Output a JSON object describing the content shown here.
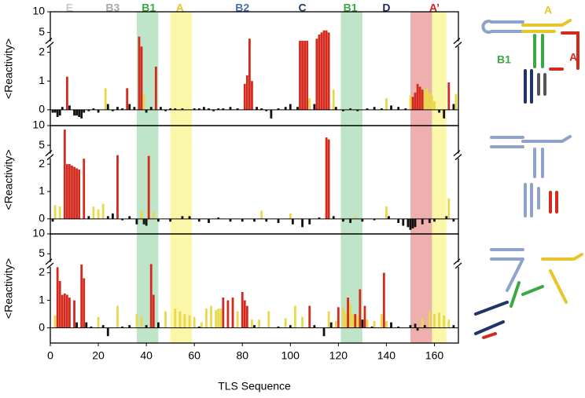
{
  "chart_data": [
    {
      "type": "bar",
      "ylabel": "<Reactivity>",
      "xlim": [
        0,
        170
      ],
      "ylim": [
        -0.55,
        10
      ],
      "ybreak": 2.3,
      "yticks": [
        0,
        1,
        2,
        5,
        10
      ],
      "region_labels": [
        {
          "text": "E",
          "x": 8,
          "color": "#c8c8c8"
        },
        {
          "text": "B3",
          "x": 26,
          "color": "#a8a8a8"
        },
        {
          "text": "B1",
          "x": 41,
          "color": "#3aa845"
        },
        {
          "text": "A",
          "x": 54,
          "color": "#e8c62a"
        },
        {
          "text": "B2",
          "x": 80,
          "color": "#4b6fae"
        },
        {
          "text": "C",
          "x": 105,
          "color": "#283a6a"
        },
        {
          "text": "B1",
          "x": 125,
          "color": "#3aa845"
        },
        {
          "text": "D",
          "x": 140,
          "color": "#1d2a55"
        },
        {
          "text": "A’",
          "x": 160,
          "color": "#d62020"
        }
      ],
      "highlights": [
        {
          "x": [
            36,
            45
          ],
          "color": "#bfe5c8"
        },
        {
          "x": [
            50,
            59
          ],
          "color": "#fbf7a8"
        },
        {
          "x": [
            121,
            130
          ],
          "color": "#bfe5c8"
        },
        {
          "x": [
            150,
            159
          ],
          "color": "#eeb0ae"
        },
        {
          "x": [
            159,
            165
          ],
          "color": "#fbf7a8"
        }
      ],
      "series": [
        {
          "color": "#d42a1e",
          "x": [
            7,
            32,
            37,
            38,
            44,
            81,
            82,
            83,
            84,
            104,
            105,
            106,
            107,
            111,
            112,
            113,
            114,
            115,
            116,
            151,
            152,
            153,
            154,
            155,
            166
          ],
          "values": [
            1.15,
            0.75,
            4,
            2.2,
            1.5,
            0.9,
            1.2,
            3.5,
            1.0,
            3,
            3,
            3,
            3,
            3.5,
            4.5,
            5,
            5.5,
            5.5,
            5,
            0.45,
            0.6,
            0.9,
            0.8,
            0.7,
            0.95
          ]
        },
        {
          "color": "#e8d84a",
          "x": [
            23,
            39,
            108,
            118,
            140,
            150,
            156,
            157,
            158,
            159,
            160,
            169
          ],
          "values": [
            0.75,
            0.55,
            0.4,
            0.7,
            0.4,
            0.5,
            0.7,
            0.75,
            0.6,
            0.5,
            0.3,
            0.55
          ]
        },
        {
          "color": "#111111",
          "x": [
            1,
            2,
            3,
            4,
            5,
            8,
            10,
            11,
            12,
            13,
            14,
            16,
            18,
            20,
            24,
            26,
            28,
            30,
            33,
            35,
            40,
            42,
            46,
            48,
            50,
            52,
            55,
            60,
            62,
            64,
            66,
            68,
            70,
            72,
            75,
            78,
            86,
            88,
            90,
            92,
            95,
            98,
            100,
            103,
            110,
            119,
            122,
            125,
            128,
            132,
            135,
            138,
            142,
            145,
            148,
            162,
            164,
            168
          ],
          "values": [
            -0.1,
            -0.1,
            -0.25,
            -0.2,
            0.1,
            0.15,
            -0.2,
            -0.2,
            -0.25,
            -0.3,
            -0.1,
            -0.05,
            0.05,
            -0.1,
            0.2,
            -0.05,
            0.1,
            0.05,
            0.2,
            0.1,
            -0.1,
            0.1,
            0.1,
            -0.05,
            0.05,
            0.05,
            0.05,
            0.05,
            0.05,
            0.1,
            0.05,
            -0.05,
            0.05,
            0.05,
            0.1,
            0.05,
            0.1,
            0.05,
            -0.05,
            -0.3,
            0.05,
            0.1,
            0.2,
            0.1,
            0.2,
            0.1,
            -0.05,
            0.05,
            -0.05,
            0.05,
            0.1,
            0.05,
            0.15,
            0.1,
            0.05,
            -0.1,
            -0.3,
            0.2
          ]
        }
      ]
    },
    {
      "type": "bar",
      "ylabel": "<Reactivity>",
      "xlim": [
        0,
        170
      ],
      "ylim": [
        -0.55,
        10
      ],
      "ybreak": 2.3,
      "yticks": [
        0,
        1,
        2,
        5,
        10
      ],
      "series": [
        {
          "color": "#d42a1e",
          "x": [
            6,
            7,
            8,
            9,
            10,
            11,
            12,
            14,
            28,
            41,
            115,
            116
          ],
          "values": [
            9,
            2,
            2,
            1.95,
            1.9,
            1.85,
            1.8,
            2.2,
            2.5,
            2.3,
            7,
            6.5
          ]
        },
        {
          "color": "#e8d84a",
          "x": [
            2,
            4,
            18,
            20,
            22,
            38,
            43,
            88,
            100,
            127,
            140,
            166
          ],
          "values": [
            0.5,
            0.45,
            0.45,
            0.35,
            0.55,
            0.3,
            0.25,
            0.3,
            0.2,
            0.1,
            0.45,
            0.75
          ]
        },
        {
          "color": "#111111",
          "x": [
            1,
            16,
            24,
            26,
            30,
            33,
            36,
            39,
            40,
            45,
            50,
            55,
            58,
            62,
            66,
            70,
            75,
            80,
            85,
            90,
            95,
            101,
            105,
            108,
            112,
            118,
            122,
            125,
            130,
            135,
            141,
            145,
            147,
            149,
            150,
            151,
            152,
            155,
            158,
            160,
            165,
            168
          ],
          "values": [
            -0.1,
            0.1,
            0.1,
            0.2,
            -0.05,
            0.1,
            -0.2,
            -0.2,
            -0.25,
            -0.1,
            -0.1,
            0.1,
            0.1,
            -0.1,
            -0.15,
            0.05,
            -0.1,
            -0.1,
            -0.1,
            -0.1,
            -0.15,
            -0.2,
            -0.3,
            -0.2,
            0.05,
            0.1,
            -0.1,
            -0.15,
            -0.1,
            -0.05,
            0.1,
            -0.15,
            -0.25,
            -0.3,
            -0.4,
            -0.35,
            -0.3,
            -0.2,
            -0.15,
            -0.1,
            0.1,
            -0.1
          ]
        }
      ]
    },
    {
      "type": "bar",
      "ylabel": "<Reactivity>",
      "xlabel": "TLS Sequence",
      "xlim": [
        0,
        170
      ],
      "ylim": [
        -0.55,
        10
      ],
      "ybreak": 2.3,
      "yticks": [
        0,
        1,
        2,
        5,
        10
      ],
      "xticks": [
        0,
        20,
        40,
        60,
        80,
        100,
        120,
        140,
        160
      ],
      "series": [
        {
          "color": "#d42a1e",
          "x": [
            3,
            4,
            5,
            6,
            7,
            8,
            10,
            13,
            14,
            42,
            43,
            72,
            74,
            76,
            80,
            81,
            82,
            108,
            120,
            124,
            127,
            129,
            131,
            139
          ],
          "values": [
            2.2,
            1.7,
            1.2,
            1.25,
            1.2,
            1.1,
            1.0,
            2.3,
            1.8,
            2.4,
            1.2,
            1.1,
            1.0,
            1.1,
            1.3,
            1.0,
            0.8,
            0.8,
            0.75,
            1.1,
            0.5,
            1.4,
            0.8,
            2.0
          ]
        },
        {
          "color": "#e8d84a",
          "x": [
            2,
            20,
            28,
            36,
            38,
            48,
            52,
            54,
            56,
            58,
            60,
            63,
            65,
            67,
            69,
            70,
            71,
            78,
            84,
            87,
            91,
            98,
            102,
            105,
            116,
            119,
            122,
            123,
            125,
            126,
            128,
            132,
            135,
            138,
            140,
            155,
            158,
            160,
            162,
            164,
            166
          ],
          "values": [
            0.45,
            0.4,
            0.8,
            0.5,
            0.4,
            0.6,
            0.7,
            0.6,
            0.5,
            0.45,
            0.4,
            0.2,
            0.7,
            0.8,
            0.65,
            0.7,
            0.7,
            0.6,
            0.3,
            0.3,
            0.6,
            0.35,
            0.8,
            0.4,
            0.6,
            0.25,
            0.75,
            0.55,
            0.9,
            0.5,
            0.45,
            0.3,
            0.25,
            0.5,
            0.25,
            0.35,
            0.6,
            0.5,
            0.55,
            0.45,
            0.3
          ]
        },
        {
          "color": "#111111",
          "x": [
            11,
            15,
            17,
            22,
            24,
            30,
            33,
            40,
            45,
            62,
            85,
            95,
            100,
            110,
            114,
            117,
            130,
            134,
            142,
            145,
            150,
            152,
            153,
            156,
            168
          ],
          "values": [
            0.2,
            0.2,
            0.05,
            0.1,
            -0.3,
            0.05,
            0.1,
            0.1,
            0.2,
            0.05,
            0.1,
            0.05,
            0.1,
            0.1,
            -0.3,
            0.2,
            0.3,
            0.05,
            0.2,
            0.05,
            0.1,
            0.15,
            -0.1,
            0.1,
            0.1
          ]
        }
      ]
    }
  ],
  "diagram": {
    "labels": [
      "A",
      "A’",
      "B1"
    ]
  }
}
